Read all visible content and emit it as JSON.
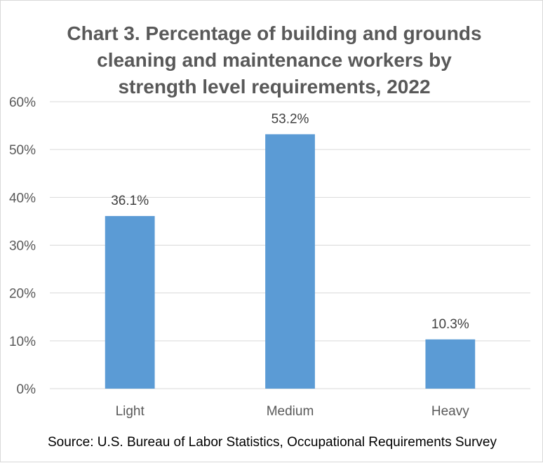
{
  "chart_data": {
    "type": "bar",
    "title_lines": [
      "Chart 3. Percentage of building and grounds",
      "cleaning and maintenance workers by",
      "strength level requirements, 2022"
    ],
    "categories": [
      "Light",
      "Medium",
      "Heavy"
    ],
    "values": [
      36.1,
      53.2,
      10.3
    ],
    "data_labels": [
      "36.1%",
      "53.2%",
      "10.3%"
    ],
    "ylim": [
      0,
      60
    ],
    "yticks": [
      0,
      10,
      20,
      30,
      40,
      50,
      60
    ],
    "ytick_labels": [
      "0%",
      "10%",
      "20%",
      "30%",
      "40%",
      "50%",
      "60%"
    ],
    "grid": true,
    "legend": "none",
    "bar_color": "#5b9bd5"
  },
  "source": "Source: U.S. Bureau of Labor Statistics, Occupational Requirements Survey"
}
